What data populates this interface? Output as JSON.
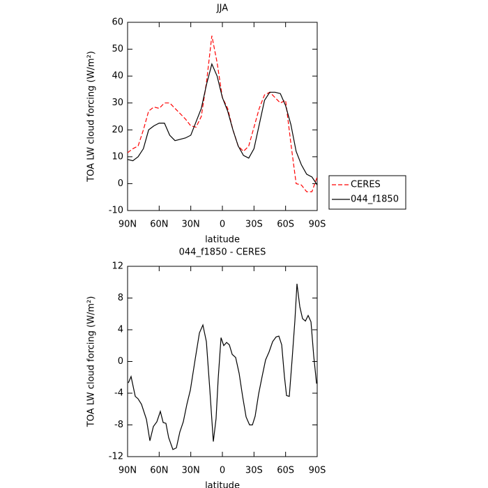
{
  "chart_data": [
    {
      "type": "line",
      "title": "JJA",
      "xlabel": "latitude",
      "ylabel": "TOA LW cloud forcing (W/m²)",
      "x": [
        90,
        85,
        80,
        75,
        70,
        65,
        60,
        55,
        50,
        45,
        40,
        35,
        30,
        25,
        20,
        15,
        10,
        5,
        0,
        -5,
        -10,
        -15,
        -20,
        -25,
        -30,
        -35,
        -40,
        -45,
        -50,
        -55,
        -60,
        -65,
        -70,
        -75,
        -80,
        -85,
        -90
      ],
      "series": [
        {
          "name": "CERES",
          "color": "#ff0000",
          "dashed": true,
          "values": [
            11.5,
            13,
            14,
            20,
            27,
            28.5,
            28,
            30,
            30,
            28,
            26,
            24,
            21.5,
            21,
            25,
            38,
            55,
            45,
            32,
            28,
            20,
            14,
            12,
            14,
            21,
            28,
            33,
            34,
            32,
            30,
            31,
            15,
            0,
            -0.5,
            -3,
            -3,
            2.5
          ]
        },
        {
          "name": "044_f1850",
          "color": "#000000",
          "dashed": false,
          "values": [
            9,
            8.5,
            10,
            13,
            20,
            21.5,
            22.5,
            22.5,
            18,
            16,
            16.5,
            17,
            18,
            23,
            28,
            37,
            44.5,
            40,
            32,
            27,
            20,
            14,
            10.5,
            9.5,
            13,
            22,
            31,
            34,
            34,
            33.5,
            29,
            22,
            12,
            7,
            3.5,
            2.5,
            -0.5
          ]
        }
      ],
      "xlim": [
        90,
        -90
      ],
      "xticks": [
        {
          "value": 90,
          "label": "90N"
        },
        {
          "value": 60,
          "label": "60N"
        },
        {
          "value": 30,
          "label": "30N"
        },
        0,
        {
          "value": -30,
          "label": "30S"
        },
        {
          "value": -60,
          "label": "60S"
        },
        {
          "value": -90,
          "label": "90S"
        }
      ],
      "ylim": [
        -10,
        60
      ],
      "yticks": [
        -10,
        0,
        10,
        20,
        30,
        40,
        50,
        60
      ],
      "legend": "right",
      "grid": false
    },
    {
      "type": "line",
      "title": "044_f1850 - CERES",
      "xlabel": "latitude",
      "ylabel": "TOA LW cloud forcing (W/m²)",
      "x": [
        89.3,
        86.7,
        82.7,
        80.1,
        76.8,
        72.1,
        68.8,
        65.5,
        62.2,
        58.9,
        56.2,
        53.6,
        51,
        47,
        43.7,
        40.4,
        37.1,
        33.7,
        30.4,
        25.8,
        21.8,
        18.5,
        15.2,
        11.9,
        8.6,
        6,
        4,
        1.3,
        -1.3,
        -4,
        -6.6,
        -9.3,
        -12.6,
        -15.9,
        -19.2,
        -22.5,
        -25.8,
        -28.5,
        -31.1,
        -34.4,
        -37.7,
        -41,
        -44.3,
        -47.7,
        -51,
        -53.6,
        -56.3,
        -58.9,
        -60.9,
        -63.5,
        -66.2,
        -68.8,
        -70.8,
        -73.5,
        -76.1,
        -78.8,
        -81.4,
        -84.1,
        -86.7,
        -89.4
      ],
      "values": [
        -2.7,
        -1.9,
        -4.4,
        -4.7,
        -5.4,
        -7.3,
        -10,
        -8.2,
        -7.6,
        -6.3,
        -7.7,
        -7.8,
        -9.6,
        -11.1,
        -10.9,
        -8.9,
        -7.6,
        -5.4,
        -3.6,
        0.3,
        3.6,
        4.6,
        2.5,
        -3.6,
        -10.1,
        -7.2,
        -2.2,
        3,
        2,
        2.4,
        2.1,
        0.9,
        0.5,
        -1.5,
        -4.4,
        -7,
        -8,
        -8,
        -6.9,
        -4.1,
        -1.9,
        0.2,
        1.2,
        2.5,
        3.1,
        3.2,
        2.1,
        -1.9,
        -4.3,
        -4.4,
        0.3,
        5.1,
        9.8,
        6.9,
        5.4,
        5.1,
        5.8,
        5,
        0.7,
        -2.8
      ],
      "color": "#000000",
      "xlim": [
        90,
        -90
      ],
      "xticks": [
        {
          "value": 90,
          "label": "90N"
        },
        {
          "value": 60,
          "label": "60N"
        },
        {
          "value": 30,
          "label": "30N"
        },
        0,
        {
          "value": -30,
          "label": "30S"
        },
        {
          "value": -60,
          "label": "60S"
        },
        {
          "value": -90,
          "label": "90S"
        }
      ],
      "ylim": [
        -12,
        12
      ],
      "yticks": [
        -12,
        -8,
        -4,
        0,
        4,
        8,
        12
      ],
      "grid": false
    }
  ]
}
